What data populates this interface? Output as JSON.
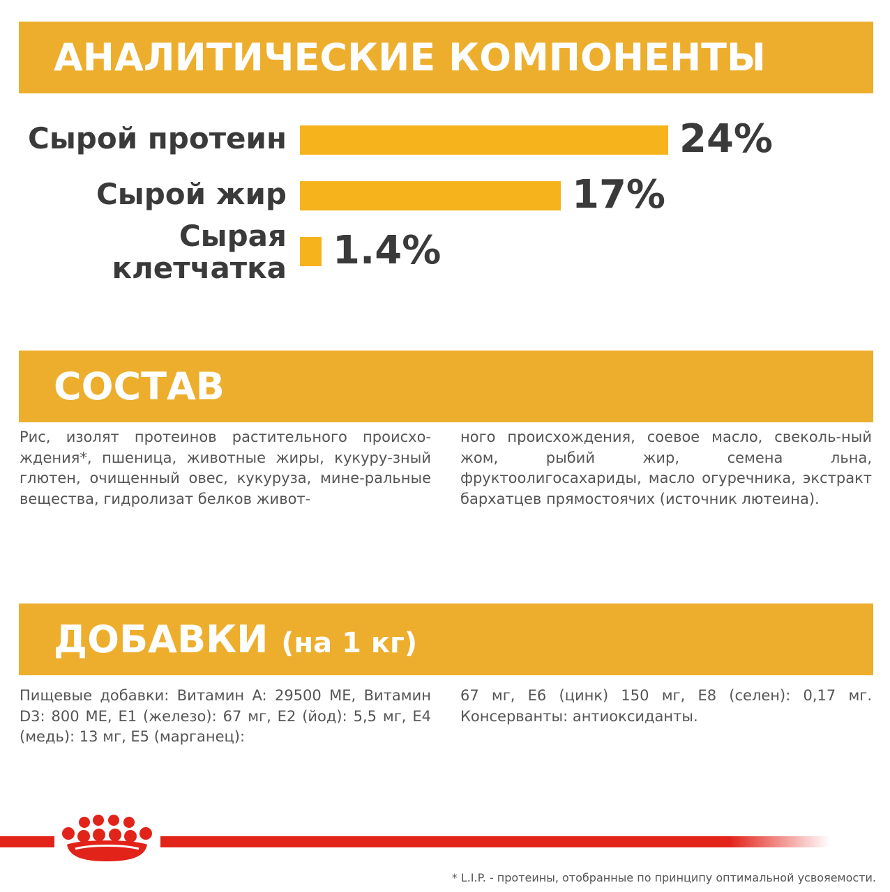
{
  "analytics": {
    "title": "АНАЛИТИЧЕСКИЕ КОМПОНЕНТЫ",
    "items": [
      {
        "label": "Сырой протеин",
        "value": "24%",
        "percent": 24
      },
      {
        "label": "Сырой жир",
        "value": "17%",
        "percent": 17
      },
      {
        "label_line1": "Сырая",
        "label_line2": "клетчатка",
        "value": "1.4%",
        "percent": 1.4
      }
    ]
  },
  "composition": {
    "title": "СОСТАВ",
    "text_left": "Рис, изолят протеинов растительного происхо-ждения*, пшеница, животные жиры, кукуру-зный глютен, очищенный овес, кукуруза, мине-ральные вещества, гидролизат белков живот-",
    "text_right": "ного происхождения, соевое масло, свеколь-ный жом, рыбий жир, семена льна, фруктоолигосахариды, масло огуречника, экстракт бархатцев прямостоячих (источник лютеина)."
  },
  "additives": {
    "title": "ДОБАВКИ",
    "title_suffix": "(на 1 кг)",
    "text_left": "Пищевые добавки: Витамин A: 29500 МЕ, Витамин D3: 800 МЕ, E1 (железо): 67 мг, E2 (йод): 5,5 мг, E4 (медь): 13 мг, E5 (марганец):",
    "text_right": "67 мг, E6 (цинк) 150 мг, E8 (селен): 0,17 мг. Консерванты: антиоксиданты."
  },
  "footer": {
    "footnote": "* L.I.P. - протеины, отобранные по принципу оптимальной усвояемости.",
    "logo_icon": "royal-crown-icon"
  },
  "colors": {
    "banner": "#EDAE2D",
    "bar": "#F6B31C",
    "brand_red": "#E2231A",
    "text_dark": "#3A3A3A"
  }
}
